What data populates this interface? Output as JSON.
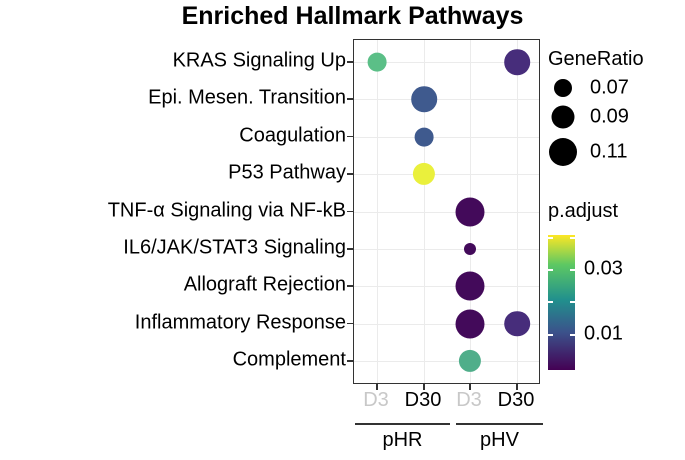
{
  "chart_data": {
    "type": "scatter",
    "title": "Enriched Hallmark Pathways",
    "xlabel": "",
    "ylabel": "",
    "y_categories": [
      "KRAS Signaling Up",
      "Epi. Mesen. Transition",
      "Coagulation",
      "P53 Pathway",
      "TNF-α Signaling via NF-kB",
      "IL6/JAK/STAT3 Signaling",
      "Allograft Rejection",
      "Inflammatory Response",
      "Complement"
    ],
    "x_categories": [
      {
        "label": "D3",
        "group": "pHR",
        "greyed": true
      },
      {
        "label": "D30",
        "group": "pHR",
        "greyed": false
      },
      {
        "label": "D3",
        "group": "pHV",
        "greyed": true
      },
      {
        "label": "D30",
        "group": "pHV",
        "greyed": false
      }
    ],
    "groups": [
      "pHR",
      "pHV"
    ],
    "points": [
      {
        "pathway": "KRAS Signaling Up",
        "col": 0,
        "gene_ratio": 0.08,
        "p_adjust": 0.027,
        "color": "#5bbf87"
      },
      {
        "pathway": "KRAS Signaling Up",
        "col": 3,
        "gene_ratio": 0.1,
        "p_adjust": 0.005,
        "color": "#472d7b"
      },
      {
        "pathway": "Epi. Mesen. Transition",
        "col": 1,
        "gene_ratio": 0.1,
        "p_adjust": 0.012,
        "color": "#3f5a8e"
      },
      {
        "pathway": "Coagulation",
        "col": 1,
        "gene_ratio": 0.08,
        "p_adjust": 0.012,
        "color": "#3f5a8e"
      },
      {
        "pathway": "P53 Pathway",
        "col": 1,
        "gene_ratio": 0.09,
        "p_adjust": 0.038,
        "color": "#eaf03c"
      },
      {
        "pathway": "TNF-α Signaling via NF-kB",
        "col": 2,
        "gene_ratio": 0.11,
        "p_adjust": 0.001,
        "color": "#430a5a"
      },
      {
        "pathway": "IL6/JAK/STAT3 Signaling",
        "col": 2,
        "gene_ratio": 0.06,
        "p_adjust": 0.001,
        "color": "#430a5a"
      },
      {
        "pathway": "Allograft Rejection",
        "col": 2,
        "gene_ratio": 0.11,
        "p_adjust": 0.001,
        "color": "#430a5a"
      },
      {
        "pathway": "Inflammatory Response",
        "col": 2,
        "gene_ratio": 0.11,
        "p_adjust": 0.001,
        "color": "#430a5a"
      },
      {
        "pathway": "Inflammatory Response",
        "col": 3,
        "gene_ratio": 0.1,
        "p_adjust": 0.005,
        "color": "#472d7b"
      },
      {
        "pathway": "Complement",
        "col": 2,
        "gene_ratio": 0.09,
        "p_adjust": 0.025,
        "color": "#4fae8a"
      }
    ],
    "size_legend": {
      "title": "GeneRatio",
      "values": [
        "0.07",
        "0.09",
        "0.11"
      ]
    },
    "color_legend": {
      "title": "p.adjust",
      "ticks": [
        "0.03",
        "0.01"
      ],
      "range": [
        0.0,
        0.04
      ],
      "colormap": "viridis"
    },
    "grid": true,
    "legend_position": "right"
  }
}
